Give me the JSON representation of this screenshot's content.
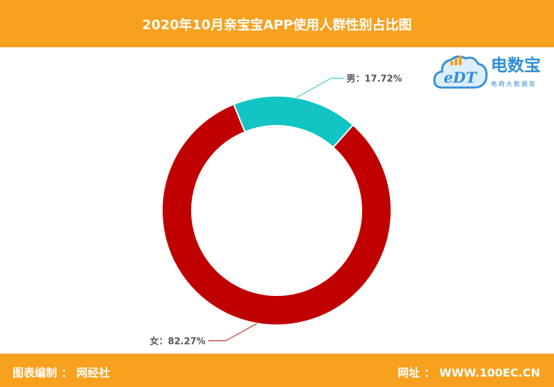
{
  "header": {
    "title": "2020年10月亲宝宝APP使用人群性别占比图"
  },
  "footer": {
    "left_label": "图表编制",
    "left_value": "网经社",
    "right_label": "网址",
    "right_value": "WWW.100EC.CN"
  },
  "logo": {
    "name": "电数宝",
    "tagline": "电商大数据库",
    "icon_text": "eDT"
  },
  "chart_data": {
    "type": "pie",
    "donut": true,
    "labels": [
      "男",
      "女"
    ],
    "values": [
      17.72,
      82.27
    ],
    "value_labels": [
      "17.72%",
      "82.27%"
    ],
    "separator": "：",
    "colors": [
      "#12c4c4",
      "#c00000"
    ],
    "label_text_color": "#555555"
  }
}
